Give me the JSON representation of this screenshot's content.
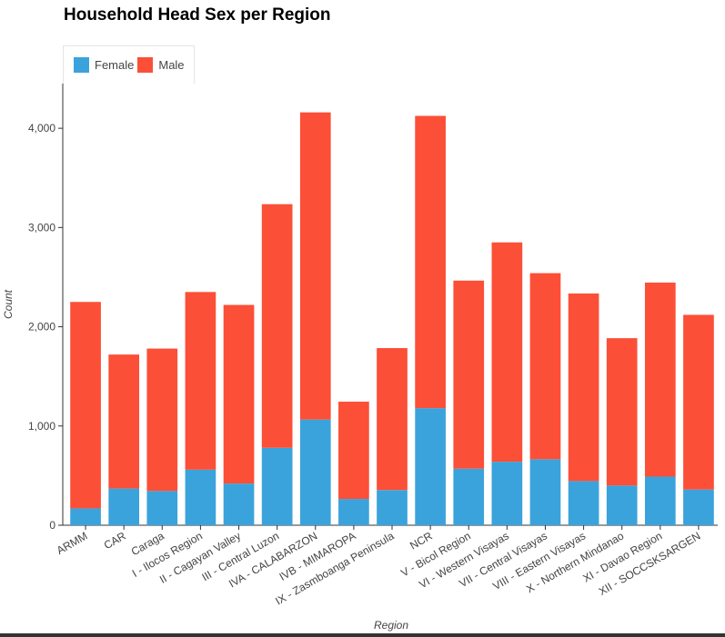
{
  "chart_data": {
    "type": "bar",
    "stacked": true,
    "title": "Household Head Sex per Region",
    "xlabel": "Region",
    "ylabel": "Count",
    "ylim": [
      0,
      4450
    ],
    "yticks": [
      0,
      1000,
      2000,
      3000,
      4000
    ],
    "ytick_labels": [
      "0",
      "1,000",
      "2,000",
      "3,000",
      "4,000"
    ],
    "legend_position": "top-left",
    "categories": [
      "ARMM",
      "CAR",
      "Caraga",
      "I - Ilocos Region",
      "II - Cagayan Valley",
      "III - Central Luzon",
      "IVA - CALABARZON",
      "IVB - MIMAROPA",
      "IX - Zasmboanga Peninsula",
      "NCR",
      "V - Bicol Region",
      "VI - Western Visayas",
      "VII - Central Visayas",
      "VIII - Eastern Visayas",
      "X - Northern Mindanao",
      "XI - Davao Region",
      "XII - SOCCSKSARGEN"
    ],
    "series": [
      {
        "name": "Female",
        "color": "#3ba3db",
        "values": [
          170,
          370,
          345,
          560,
          420,
          780,
          1065,
          265,
          355,
          1180,
          570,
          640,
          665,
          445,
          400,
          490,
          360
        ]
      },
      {
        "name": "Male",
        "color": "#fc4f37",
        "values": [
          2080,
          1350,
          1435,
          1790,
          1800,
          2455,
          3095,
          980,
          1430,
          2945,
          1895,
          2210,
          1875,
          1890,
          1485,
          1955,
          1760
        ]
      }
    ]
  }
}
